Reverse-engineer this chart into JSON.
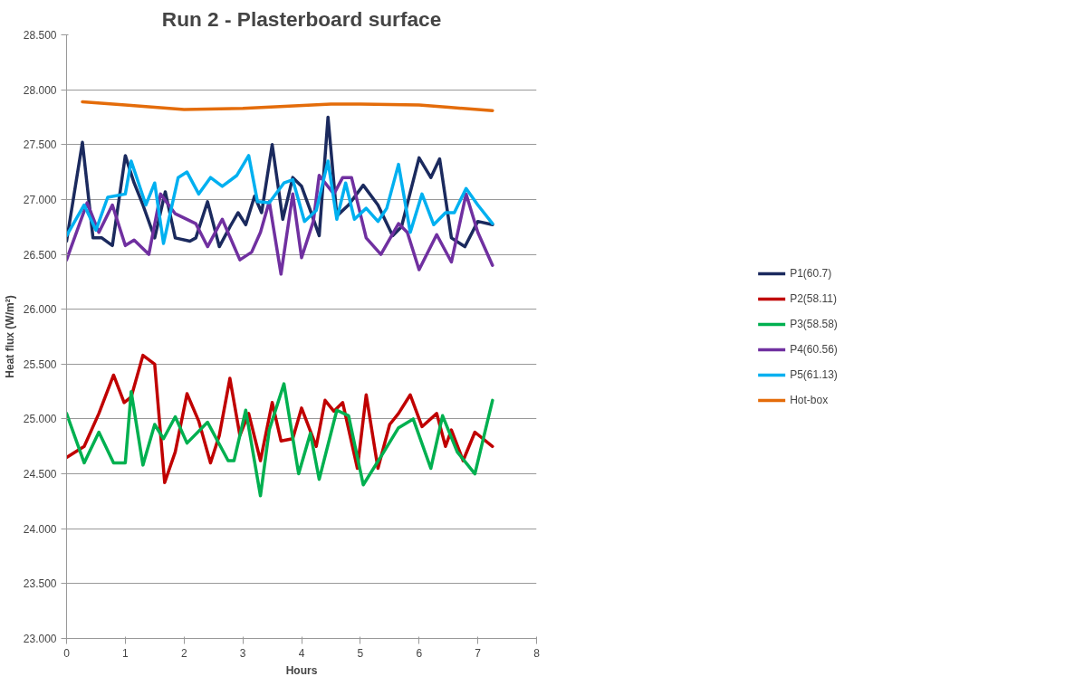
{
  "chart_data": {
    "type": "line",
    "title": "Run 2 - Plasterboard surface",
    "xlabel": "Hours",
    "ylabel": "Heat flux (W/m²)",
    "xlim": [
      0,
      8
    ],
    "xticks": [
      0,
      1,
      2,
      3,
      4,
      5,
      6,
      7,
      8
    ],
    "ylim": [
      23,
      28.5
    ],
    "yticks": [
      {
        "value": 23,
        "label": "23.000"
      },
      {
        "value": 23.5,
        "label": "23.500"
      },
      {
        "value": 24,
        "label": "24.000"
      },
      {
        "value": 24.5,
        "label": "24.500"
      },
      {
        "value": 25,
        "label": "25.000"
      },
      {
        "value": 25.5,
        "label": "25.500"
      },
      {
        "value": 26,
        "label": "26.000"
      },
      {
        "value": 26.5,
        "label": "26.500"
      },
      {
        "value": 27,
        "label": "27.000"
      },
      {
        "value": 27.5,
        "label": "27.500"
      },
      {
        "value": 28,
        "label": "28.000"
      },
      {
        "value": 28.5,
        "label": "28.500"
      }
    ],
    "grid": "y",
    "legend": "right",
    "marker": "none",
    "line_style": "solid",
    "series": [
      {
        "name": "P1(60.7)",
        "color": "#1b2a5e",
        "x": [
          0,
          0.27,
          0.45,
          0.6,
          0.78,
          1.0,
          1.15,
          1.3,
          1.5,
          1.68,
          1.85,
          2.1,
          2.2,
          2.4,
          2.6,
          2.78,
          2.92,
          3.05,
          3.2,
          3.32,
          3.5,
          3.68,
          3.85,
          4.0,
          4.15,
          4.3,
          4.45,
          4.6,
          4.8,
          5.05,
          5.3,
          5.55,
          5.7,
          6.0,
          6.2,
          6.35,
          6.55,
          6.78,
          7.0,
          7.25
        ],
        "values": [
          26.62,
          27.52,
          26.65,
          26.65,
          26.58,
          27.4,
          27.15,
          26.95,
          26.65,
          27.07,
          26.65,
          26.62,
          26.65,
          26.98,
          26.57,
          26.75,
          26.88,
          26.77,
          27.03,
          26.88,
          27.5,
          26.82,
          27.2,
          27.12,
          26.9,
          26.67,
          27.75,
          26.85,
          26.95,
          27.13,
          26.95,
          26.67,
          26.75,
          27.38,
          27.2,
          27.37,
          26.65,
          26.57,
          26.8,
          26.77
        ]
      },
      {
        "name": "P2(58.11)",
        "color": "#c00000",
        "x": [
          0,
          0.3,
          0.55,
          0.8,
          0.98,
          1.1,
          1.3,
          1.5,
          1.67,
          1.85,
          2.05,
          2.25,
          2.45,
          2.6,
          2.78,
          2.95,
          3.1,
          3.3,
          3.5,
          3.65,
          3.85,
          4.0,
          4.25,
          4.4,
          4.55,
          4.7,
          4.95,
          5.1,
          5.3,
          5.5,
          5.65,
          5.85,
          6.05,
          6.3,
          6.45,
          6.55,
          6.75,
          6.95,
          7.25
        ],
        "values": [
          24.65,
          24.75,
          25.05,
          25.4,
          25.15,
          25.2,
          25.58,
          25.5,
          24.42,
          24.7,
          25.23,
          24.98,
          24.6,
          24.85,
          25.37,
          24.85,
          25.05,
          24.62,
          25.15,
          24.8,
          24.82,
          25.1,
          24.75,
          25.17,
          25.07,
          25.15,
          24.55,
          25.22,
          24.55,
          24.95,
          25.05,
          25.22,
          24.93,
          25.05,
          24.75,
          24.9,
          24.62,
          24.88,
          24.75
        ]
      },
      {
        "name": "P3(58.58)",
        "color": "#00b050",
        "x": [
          0,
          0.3,
          0.55,
          0.8,
          1.0,
          1.1,
          1.3,
          1.5,
          1.65,
          1.85,
          2.05,
          2.4,
          2.75,
          2.85,
          3.05,
          3.3,
          3.45,
          3.7,
          3.95,
          4.15,
          4.3,
          4.6,
          4.8,
          5.05,
          5.4,
          5.65,
          5.9,
          6.2,
          6.4,
          6.65,
          6.95,
          7.25
        ],
        "values": [
          25.05,
          24.6,
          24.88,
          24.6,
          24.6,
          25.25,
          24.58,
          24.95,
          24.82,
          25.02,
          24.78,
          24.97,
          24.62,
          24.62,
          25.08,
          24.3,
          24.9,
          25.32,
          24.5,
          24.87,
          24.45,
          25.08,
          25.03,
          24.4,
          24.7,
          24.92,
          25.0,
          24.55,
          25.03,
          24.7,
          24.5,
          25.17
        ]
      },
      {
        "name": "P4(60.56)",
        "color": "#7030a0",
        "x": [
          0,
          0.35,
          0.55,
          0.78,
          1.0,
          1.15,
          1.4,
          1.6,
          1.85,
          2.2,
          2.4,
          2.65,
          2.95,
          3.15,
          3.3,
          3.45,
          3.65,
          3.85,
          4.0,
          4.2,
          4.3,
          4.55,
          4.7,
          4.85,
          5.1,
          5.35,
          5.65,
          5.8,
          6.0,
          6.3,
          6.55,
          6.8,
          7.0,
          7.25
        ],
        "values": [
          26.45,
          26.97,
          26.7,
          26.95,
          26.58,
          26.63,
          26.5,
          27.05,
          26.87,
          26.78,
          26.57,
          26.82,
          26.45,
          26.52,
          26.7,
          26.98,
          26.32,
          27.05,
          26.47,
          26.8,
          27.22,
          27.05,
          27.2,
          27.2,
          26.65,
          26.5,
          26.78,
          26.7,
          26.36,
          26.68,
          26.43,
          27.05,
          26.7,
          26.4
        ]
      },
      {
        "name": "P5(61.13)",
        "color": "#00b0f0",
        "x": [
          0,
          0.3,
          0.5,
          0.7,
          1.0,
          1.1,
          1.35,
          1.5,
          1.65,
          1.9,
          2.05,
          2.25,
          2.45,
          2.65,
          2.9,
          3.1,
          3.25,
          3.45,
          3.7,
          3.85,
          4.05,
          4.25,
          4.45,
          4.6,
          4.75,
          4.9,
          5.1,
          5.3,
          5.45,
          5.65,
          5.85,
          6.05,
          6.25,
          6.45,
          6.6,
          6.8,
          7.0,
          7.25
        ],
        "values": [
          26.67,
          26.95,
          26.72,
          27.02,
          27.05,
          27.35,
          26.95,
          27.15,
          26.6,
          27.2,
          27.25,
          27.05,
          27.2,
          27.12,
          27.22,
          27.4,
          26.98,
          26.97,
          27.15,
          27.18,
          26.8,
          26.9,
          27.35,
          26.82,
          27.15,
          26.82,
          26.92,
          26.8,
          26.92,
          27.32,
          26.7,
          27.05,
          26.77,
          26.88,
          26.88,
          27.1,
          26.95,
          26.78
        ]
      },
      {
        "name": "Hot-box",
        "color": "#e46c0a",
        "x": [
          0.27,
          1,
          2,
          3,
          4.5,
          5,
          6,
          6.5,
          7.25
        ],
        "values": [
          27.89,
          27.86,
          27.82,
          27.83,
          27.87,
          27.87,
          27.86,
          27.84,
          27.81
        ]
      }
    ]
  }
}
